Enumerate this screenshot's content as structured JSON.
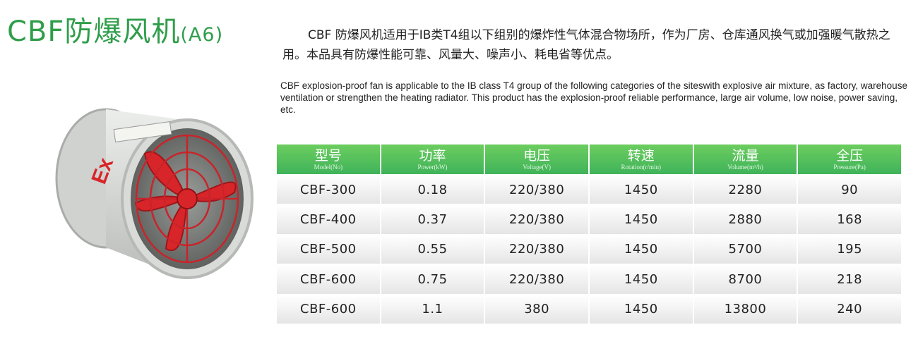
{
  "title": {
    "main": "CBF防爆风机",
    "suffix": "(A6)"
  },
  "description": {
    "zh": "CBF 防爆风机适用于IB类T4组以下组别的爆炸性气体混合物场所，作为厂房、仓库通风换气或加强暖气散热之用。本品具有防爆性能可靠、风量大、噪声小、耗电省等优点。",
    "en": "CBF explosion-proof fan is applicable to the IB class T4 group of the following categories of the siteswith explosive air mixture, as factory, warehouse ventilation or strengthen the heating radiator. This product has the explosion-proof reliable performance, large air volume, low noise, power saving, etc."
  },
  "product_image": {
    "mark": "Ex",
    "colors": {
      "body": "#d9dbd8",
      "blade": "#d8252a",
      "guard": "#c8242a"
    }
  },
  "table": {
    "headers": [
      {
        "zh": "型号",
        "en": "Model(No)"
      },
      {
        "zh": "功率",
        "en": "Power(kW)"
      },
      {
        "zh": "电压",
        "en": "Voltage(V)"
      },
      {
        "zh": "转速",
        "en": "Rotation(r/min)"
      },
      {
        "zh": "流量",
        "en": "Volume(m³/h)"
      },
      {
        "zh": "全压",
        "en": "Pressure(Pa)"
      }
    ],
    "rows": [
      [
        "CBF-300",
        "0.18",
        "220/380",
        "1450",
        "2280",
        "90"
      ],
      [
        "CBF-400",
        "0.37",
        "220/380",
        "1450",
        "2880",
        "168"
      ],
      [
        "CBF-500",
        "0.55",
        "220/380",
        "1450",
        "5700",
        "195"
      ],
      [
        "CBF-600",
        "0.75",
        "220/380",
        "1450",
        "8700",
        "218"
      ],
      [
        "CBF-600",
        "1.1",
        "380",
        "1450",
        "13800",
        "240"
      ]
    ]
  },
  "colors": {
    "title": "#2f9e4a",
    "header": "#4cbb5a"
  }
}
